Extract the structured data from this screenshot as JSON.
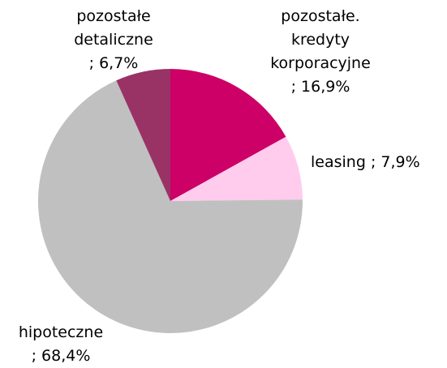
{
  "chart_data": {
    "type": "pie",
    "categories": [
      "pozostałe. kredyty korporacyjne",
      "leasing",
      "hipoteczne",
      "pozostałe detaliczne"
    ],
    "values": [
      16.9,
      7.9,
      68.4,
      6.7
    ],
    "value_labels": [
      "; 16,9%",
      "; 7,9%",
      "; 68,4%",
      "; 6,7%"
    ],
    "colors": [
      "#cc0066",
      "#ffccee",
      "#c0c0c0",
      "#993366"
    ]
  }
}
